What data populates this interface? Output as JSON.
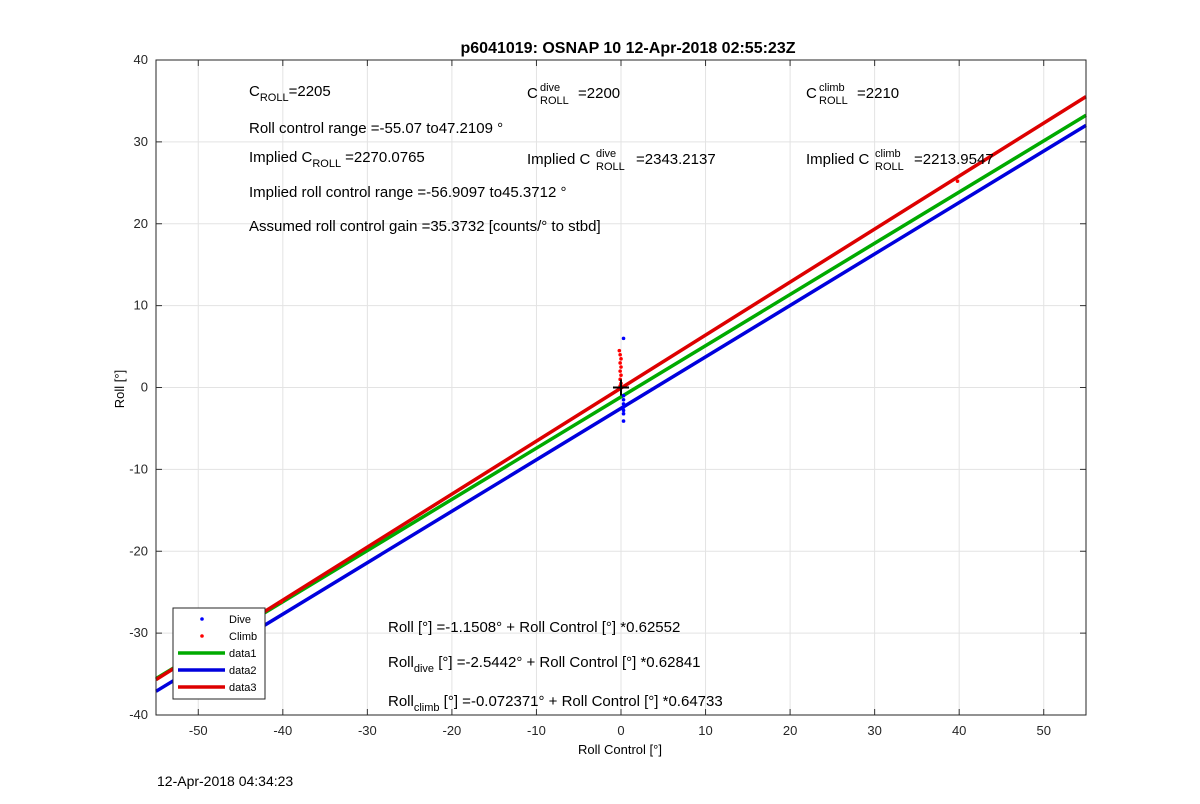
{
  "chart_data": {
    "type": "scatter",
    "title": "p6041019: OSNAP 10 12-Apr-2018 02:55:23Z",
    "xlabel": "Roll Control [°]",
    "ylabel": "Roll [°]",
    "xlim": [
      -55,
      55
    ],
    "ylim": [
      -40,
      40
    ],
    "xticks": [
      -50,
      -40,
      -30,
      -20,
      -10,
      0,
      10,
      20,
      30,
      40,
      50
    ],
    "yticks": [
      -40,
      -30,
      -20,
      -10,
      0,
      10,
      20,
      30,
      40
    ],
    "grid": true,
    "legend_position": "bottom-left",
    "legend": [
      {
        "label": "Dive",
        "kind": "marker",
        "color": "#0000ff"
      },
      {
        "label": "Climb",
        "kind": "marker",
        "color": "#ff0000"
      },
      {
        "label": "data1",
        "kind": "line",
        "color": "#00aa00"
      },
      {
        "label": "data2",
        "kind": "line",
        "color": "#0000dd"
      },
      {
        "label": "data3",
        "kind": "line",
        "color": "#dd0000"
      }
    ],
    "lines": [
      {
        "name": "data1",
        "color": "#00aa00",
        "intercept": -1.1508,
        "slope": 0.62552
      },
      {
        "name": "data2",
        "color": "#0000dd",
        "intercept": -2.5442,
        "slope": 0.62841
      },
      {
        "name": "data3",
        "color": "#dd0000",
        "intercept": -0.072371,
        "slope": 0.64733
      }
    ],
    "series": [
      {
        "name": "Dive",
        "color": "#0000ff",
        "points": [
          [
            0.3,
            6
          ],
          [
            0.3,
            -1
          ],
          [
            0.3,
            -1.5
          ],
          [
            0.3,
            -2
          ],
          [
            0.3,
            -2.4
          ],
          [
            0.3,
            -2.8
          ],
          [
            0.3,
            -3.2
          ],
          [
            0.3,
            -4.1
          ]
        ]
      },
      {
        "name": "Climb",
        "color": "#ff0000",
        "points": [
          [
            -0.2,
            4.5
          ],
          [
            -0.1,
            4
          ],
          [
            0,
            3.5
          ],
          [
            -0.1,
            3
          ],
          [
            0,
            2.5
          ],
          [
            -0.1,
            2
          ],
          [
            0,
            1.5
          ],
          [
            -0.1,
            1
          ],
          [
            0,
            0.5
          ],
          [
            -0.1,
            0.2
          ],
          [
            39.8,
            25.2
          ],
          [
            -40.2,
            -26.2
          ]
        ]
      }
    ],
    "origin_marker": [
      0,
      0
    ],
    "annotations": {
      "c_roll": {
        "main": "C",
        "sub": "ROLL",
        "value": "=2205"
      },
      "c_roll_dive": {
        "main": "C",
        "sup": "dive",
        "sub": "ROLL",
        "value": "=2200"
      },
      "c_roll_climb": {
        "main": "C",
        "sup": "climb",
        "sub": "ROLL",
        "value": "=2210"
      },
      "roll_range": "Roll control range =-55.07 to47.2109 °",
      "implied_c_roll": {
        "prefix": "Implied C",
        "sub": "ROLL",
        "value": "=2270.0765"
      },
      "implied_c_roll_dive": {
        "prefix": "Implied C",
        "sup": "dive",
        "sub": "ROLL",
        "value": "=2343.2137"
      },
      "implied_c_roll_climb": {
        "prefix": "Implied C",
        "sup": "climb",
        "sub": "ROLL",
        "value": "=2213.9547"
      },
      "implied_range": "Implied roll control range =-56.9097 to45.3712 °",
      "gain": "Assumed roll control gain =35.3732 [counts/° to stbd]",
      "fit_all": "Roll [°] =-1.1508° + Roll Control [°] *0.62552",
      "fit_dive": {
        "main": "Roll",
        "sub": "dive",
        "rest": " [°] =-2.5442° + Roll Control [°] *0.62841"
      },
      "fit_climb": {
        "main": "Roll",
        "sub": "climb",
        "rest": " [°] =-0.072371° + Roll Control [°] *0.64733"
      }
    }
  },
  "footer": {
    "timestamp": "12-Apr-2018 04:34:23"
  }
}
